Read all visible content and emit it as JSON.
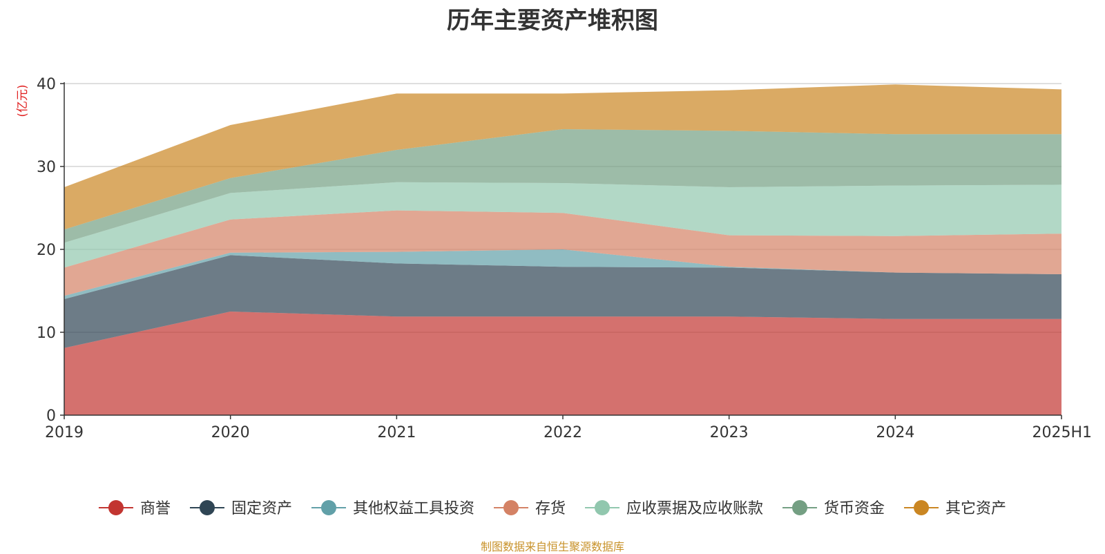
{
  "chart_data": {
    "type": "area",
    "stacked": true,
    "title": "历年主要资产堆积图",
    "ylabel": "(亿元)",
    "xlabel": "",
    "categories": [
      "2019",
      "2020",
      "2021",
      "2022",
      "2023",
      "2024",
      "2025H1"
    ],
    "yticks": [
      "0",
      "10",
      "20",
      "30",
      "40"
    ],
    "ylim": [
      0,
      40
    ],
    "grid": true,
    "legend_position": "bottom",
    "series": [
      {
        "name": "商誉",
        "color": "#c23531",
        "values": [
          8.1,
          12.5,
          11.9,
          11.9,
          11.9,
          11.6,
          11.6
        ]
      },
      {
        "name": "固定资产",
        "color": "#2f4554",
        "values": [
          5.9,
          6.8,
          6.4,
          6.0,
          5.9,
          5.6,
          5.4
        ]
      },
      {
        "name": "其他权益工具投资",
        "color": "#61a0a8",
        "values": [
          0.4,
          0.3,
          1.4,
          2.1,
          0.1,
          0.0,
          0.0
        ]
      },
      {
        "name": "存货",
        "color": "#d48265",
        "values": [
          3.4,
          4.0,
          5.0,
          4.4,
          3.8,
          4.4,
          4.9
        ]
      },
      {
        "name": "应收票据及应收账款",
        "color": "#91c7ae",
        "values": [
          3.0,
          3.2,
          3.4,
          3.6,
          5.8,
          6.1,
          5.9
        ]
      },
      {
        "name": "货币资金",
        "color": "#749f83",
        "values": [
          1.6,
          1.8,
          3.9,
          6.5,
          6.8,
          6.2,
          6.1
        ]
      },
      {
        "name": "其它资产",
        "color": "#ca8622",
        "values": [
          5.1,
          6.4,
          6.8,
          4.3,
          4.9,
          6.0,
          5.4
        ]
      }
    ]
  },
  "footer": {
    "source_note": "制图数据来自恒生聚源数据库"
  }
}
